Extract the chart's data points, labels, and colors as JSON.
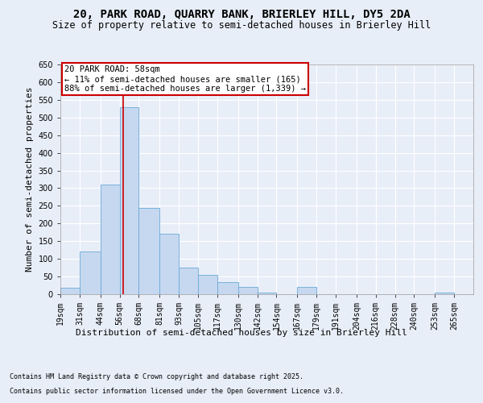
{
  "title": "20, PARK ROAD, QUARRY BANK, BRIERLEY HILL, DY5 2DA",
  "subtitle": "Size of property relative to semi-detached houses in Brierley Hill",
  "xlabel": "Distribution of semi-detached houses by size in Brierley Hill",
  "ylabel": "Number of semi-detached properties",
  "footnote1": "Contains HM Land Registry data © Crown copyright and database right 2025.",
  "footnote2": "Contains public sector information licensed under the Open Government Licence v3.0.",
  "annotation_title": "20 PARK ROAD: 58sqm",
  "annotation_line1": "← 11% of semi-detached houses are smaller (165)",
  "annotation_line2": "88% of semi-detached houses are larger (1,339) →",
  "bar_color": "#c5d8f0",
  "bar_edge_color": "#6baad8",
  "vline_color": "#cc0000",
  "bg_color": "#e8eef8",
  "grid_color": "#ffffff",
  "fig_bg_color": "#e8eef8",
  "categories": [
    "19sqm",
    "31sqm",
    "44sqm",
    "56sqm",
    "68sqm",
    "81sqm",
    "93sqm",
    "105sqm",
    "117sqm",
    "130sqm",
    "142sqm",
    "154sqm",
    "167sqm",
    "179sqm",
    "191sqm",
    "204sqm",
    "216sqm",
    "228sqm",
    "240sqm",
    "253sqm",
    "265sqm"
  ],
  "bin_left": [
    19,
    31,
    44,
    56,
    68,
    81,
    93,
    105,
    117,
    130,
    142,
    154,
    167,
    179,
    191,
    204,
    216,
    228,
    240,
    253,
    265
  ],
  "bin_right": [
    31,
    44,
    56,
    68,
    81,
    93,
    105,
    117,
    130,
    142,
    154,
    167,
    179,
    191,
    204,
    216,
    228,
    240,
    253,
    265,
    277
  ],
  "values": [
    18,
    120,
    310,
    530,
    245,
    170,
    75,
    55,
    35,
    20,
    5,
    0,
    20,
    0,
    0,
    0,
    0,
    0,
    0,
    5,
    0
  ],
  "ylim": [
    0,
    650
  ],
  "yticks": [
    0,
    50,
    100,
    150,
    200,
    250,
    300,
    350,
    400,
    450,
    500,
    550,
    600,
    650
  ],
  "vline_x": 58,
  "annot_box_color": "#ffffff",
  "annot_box_edge": "#cc0000"
}
